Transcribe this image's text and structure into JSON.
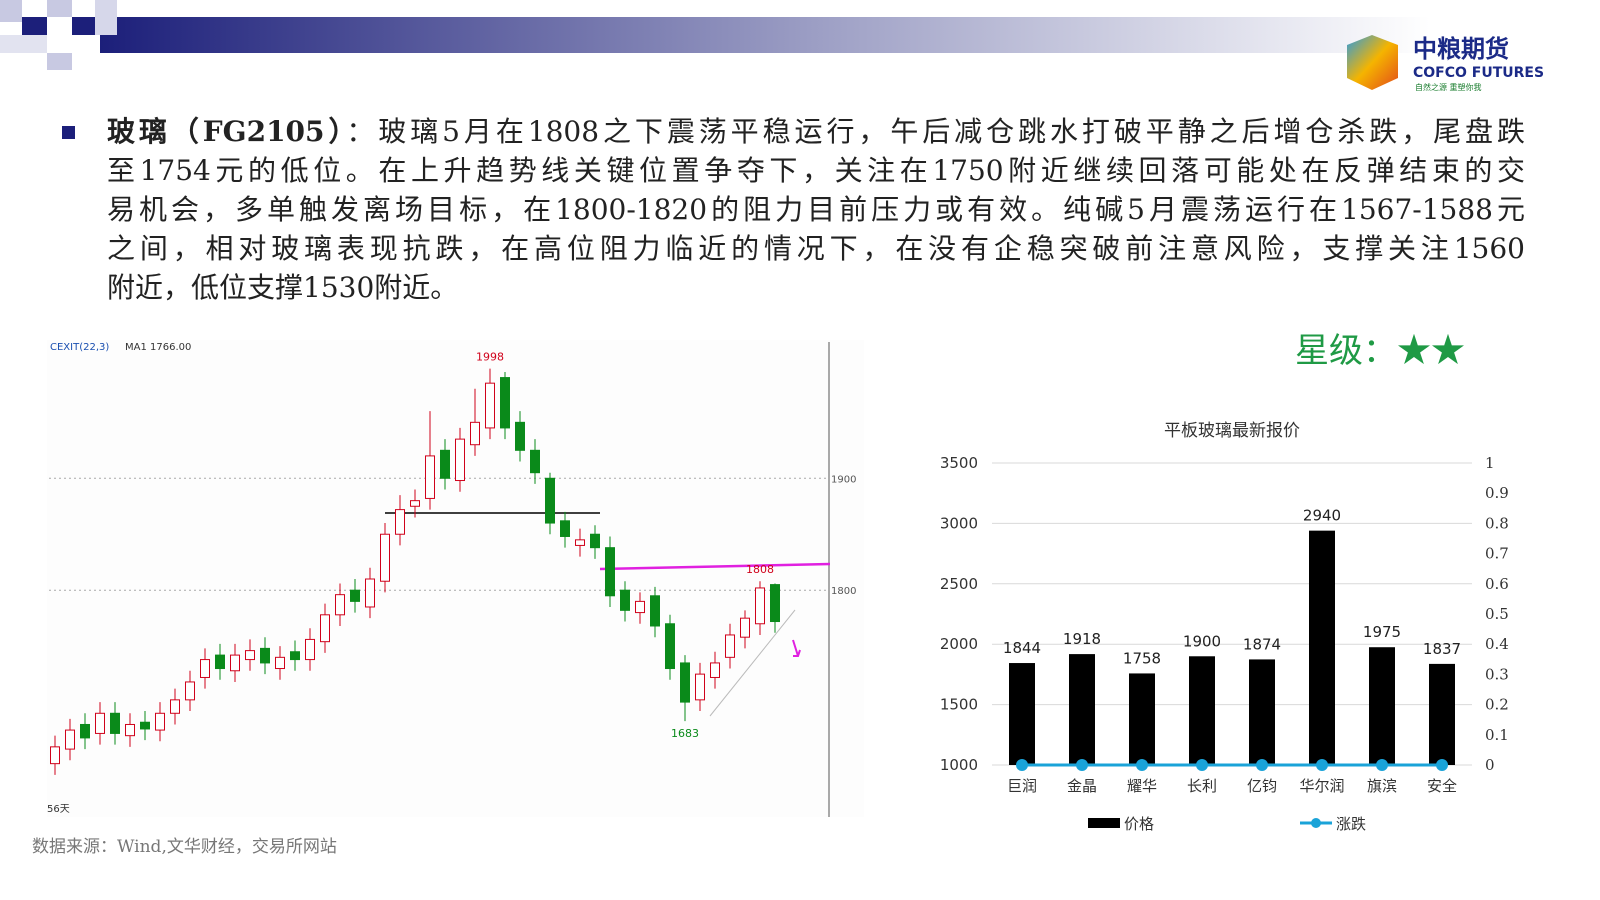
{
  "header": {
    "logo_name": "中粮期货",
    "logo_english": "COFCO FUTURES",
    "logo_slogan": "自然之源 重塑你我"
  },
  "commentary": {
    "title": "玻璃（FG2105）",
    "lines": [
      "：玻璃5月在1808之下震荡平稳运行，午后减仓跳水打破平静之后增仓杀跌，尾盘跌",
      "至1754元的低位。在上升趋势线关键位置争夺下，关注在1750附近继续回落可能处在反弹结束的交",
      "易机会，多单触发离场目标，在1800-1820的阻力目前压力或有效。纯碱5月震荡运行在1567-1588元",
      "之间，相对玻璃表现抗跌，在高位阻力临近的情况下，在没有企稳突破前注意风险，支撑关注1560",
      "附近，低位支撑1530附近。"
    ]
  },
  "rating": "星级：★★",
  "source": "数据来源：Wind,文华财经，交易所网站",
  "chart_data": [
    {
      "type": "candlestick",
      "indicator": "CEXIT(22,3)",
      "ma_label": "MA1 1766.00",
      "period_label": "56天",
      "ylim": [
        1600,
        2020
      ],
      "yticks": [
        1800,
        1900
      ],
      "open": [
        1645,
        1658,
        1680,
        1672,
        1690,
        1670,
        1682,
        1675,
        1690,
        1702,
        1722,
        1742,
        1728,
        1738,
        1748,
        1730,
        1745,
        1738,
        1754,
        1778,
        1800,
        1785,
        1808,
        1850,
        1875,
        1882,
        1925,
        1898,
        1930,
        1945,
        1990,
        1950,
        1925,
        1900,
        1862,
        1840,
        1850,
        1838,
        1800,
        1780,
        1795,
        1770,
        1735,
        1702,
        1722,
        1740,
        1758,
        1770,
        1805
      ],
      "high": [
        1670,
        1685,
        1690,
        1700,
        1700,
        1690,
        1692,
        1700,
        1712,
        1728,
        1748,
        1752,
        1752,
        1756,
        1758,
        1750,
        1755,
        1766,
        1788,
        1806,
        1810,
        1820,
        1860,
        1885,
        1890,
        1960,
        1935,
        1945,
        1980,
        1998,
        1995,
        1960,
        1935,
        1905,
        1870,
        1855,
        1858,
        1848,
        1808,
        1798,
        1803,
        1778,
        1742,
        1735,
        1745,
        1770,
        1782,
        1808,
        1806
      ],
      "low": [
        1635,
        1648,
        1658,
        1662,
        1662,
        1660,
        1666,
        1665,
        1680,
        1692,
        1712,
        1720,
        1718,
        1728,
        1725,
        1720,
        1728,
        1728,
        1744,
        1768,
        1780,
        1775,
        1798,
        1840,
        1865,
        1872,
        1890,
        1888,
        1920,
        1935,
        1935,
        1915,
        1895,
        1850,
        1838,
        1830,
        1828,
        1785,
        1772,
        1770,
        1758,
        1720,
        1683,
        1692,
        1712,
        1730,
        1748,
        1760,
        1762
      ],
      "close": [
        1660,
        1675,
        1668,
        1690,
        1672,
        1680,
        1676,
        1690,
        1702,
        1718,
        1738,
        1730,
        1742,
        1746,
        1735,
        1740,
        1738,
        1756,
        1778,
        1796,
        1790,
        1810,
        1850,
        1872,
        1880,
        1920,
        1900,
        1935,
        1950,
        1985,
        1945,
        1925,
        1905,
        1860,
        1848,
        1845,
        1838,
        1795,
        1782,
        1790,
        1768,
        1730,
        1700,
        1725,
        1735,
        1760,
        1775,
        1802,
        1772
      ],
      "annotations": [
        1998,
        1808,
        1683
      ],
      "annotation_index": [
        29,
        47,
        42
      ],
      "up_color": "#d0021b",
      "down_color": "#0a8a1a"
    },
    {
      "type": "bar",
      "title": "平板玻璃最新报价",
      "categories": [
        "巨润",
        "金晶",
        "耀华",
        "长利",
        "亿钧",
        "华尔润",
        "旗滨",
        "安全"
      ],
      "series": [
        {
          "name": "价格",
          "color": "#000000",
          "values": [
            1844,
            1918,
            1758,
            1900,
            1874,
            2940,
            1975,
            1837
          ]
        },
        {
          "name": "涨跌",
          "color": "#1aa3d8",
          "axis": "y2",
          "values": [
            0,
            0,
            0,
            0,
            0,
            0,
            0,
            0
          ]
        }
      ],
      "ylim": [
        1000,
        3500
      ],
      "yticks": [
        1000,
        1500,
        2000,
        2500,
        3000,
        3500
      ],
      "y2lim": [
        0,
        1
      ],
      "y2ticks": [
        0,
        0.1,
        0.2,
        0.3,
        0.4,
        0.5,
        0.6,
        0.7,
        0.8,
        0.9,
        1
      ],
      "grid": true
    }
  ]
}
